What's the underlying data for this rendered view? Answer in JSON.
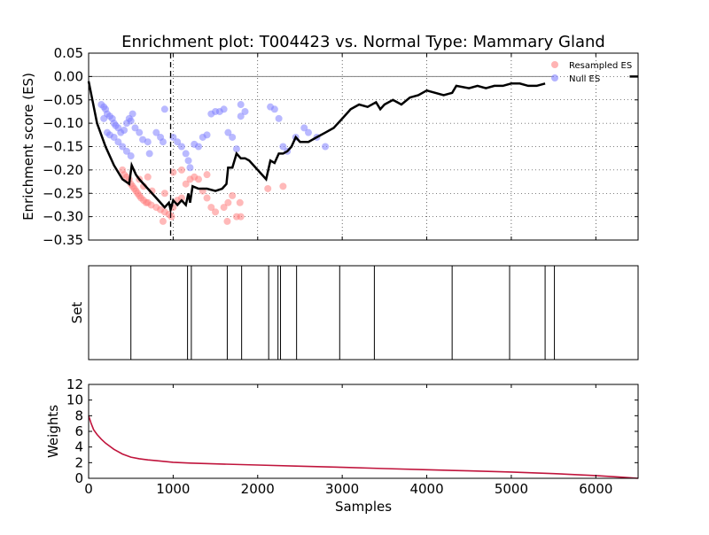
{
  "chart_data": [
    {
      "type": "line",
      "title": "Enrichment plot: T004423 vs. Normal Type: Mammary Gland",
      "ylabel": "Enrichment score (ES)",
      "xlim": [
        0,
        6500
      ],
      "ylim": [
        -0.35,
        0.05
      ],
      "yticks": [
        "0.05",
        "0.00",
        "−0.05",
        "−0.10",
        "−0.15",
        "−0.20",
        "−0.25",
        "−0.30",
        "−0.35"
      ],
      "grid": true,
      "legend": {
        "placement": "top-right",
        "entries": [
          "Resampled ES",
          "Null ES"
        ]
      },
      "colors": {
        "es_line": "#000000",
        "resampled": "#ff8080",
        "null": "#8080ff",
        "zero_line": "#808080"
      },
      "peak_marker_x": 970,
      "series": [
        {
          "name": "ES",
          "x": [
            0,
            100,
            200,
            300,
            400,
            480,
            510,
            560,
            600,
            700,
            800,
            900,
            950,
            970,
            1000,
            1050,
            1100,
            1150,
            1180,
            1200,
            1230,
            1300,
            1400,
            1500,
            1580,
            1630,
            1650,
            1700,
            1750,
            1800,
            1850,
            1900,
            2000,
            2100,
            2150,
            2200,
            2250,
            2300,
            2350,
            2400,
            2450,
            2500,
            2600,
            2700,
            2800,
            2900,
            2950,
            3000,
            3100,
            3200,
            3300,
            3400,
            3450,
            3500,
            3600,
            3700,
            3800,
            3900,
            4000,
            4100,
            4200,
            4300,
            4350,
            4500,
            4600,
            4700,
            4800,
            4900,
            5000,
            5100,
            5200,
            5300,
            5400
          ],
          "y": [
            -0.01,
            -0.1,
            -0.15,
            -0.19,
            -0.22,
            -0.23,
            -0.19,
            -0.21,
            -0.22,
            -0.24,
            -0.26,
            -0.28,
            -0.27,
            -0.285,
            -0.265,
            -0.275,
            -0.265,
            -0.275,
            -0.25,
            -0.27,
            -0.235,
            -0.24,
            -0.24,
            -0.245,
            -0.24,
            -0.23,
            -0.195,
            -0.195,
            -0.165,
            -0.175,
            -0.175,
            -0.18,
            -0.2,
            -0.22,
            -0.18,
            -0.185,
            -0.165,
            -0.165,
            -0.16,
            -0.15,
            -0.13,
            -0.14,
            -0.14,
            -0.13,
            -0.12,
            -0.11,
            -0.1,
            -0.09,
            -0.07,
            -0.06,
            -0.065,
            -0.055,
            -0.07,
            -0.06,
            -0.05,
            -0.06,
            -0.045,
            -0.04,
            -0.03,
            -0.035,
            -0.04,
            -0.035,
            -0.02,
            -0.025,
            -0.02,
            -0.025,
            -0.02,
            -0.02,
            -0.015,
            -0.015,
            -0.02,
            -0.02,
            -0.015
          ]
        },
        {
          "name": "Resampled ES",
          "points": [
            [
              400,
              -0.2
            ],
            [
              420,
              -0.21
            ],
            [
              450,
              -0.215
            ],
            [
              480,
              -0.22
            ],
            [
              500,
              -0.23
            ],
            [
              520,
              -0.235
            ],
            [
              540,
              -0.24
            ],
            [
              560,
              -0.245
            ],
            [
              580,
              -0.25
            ],
            [
              600,
              -0.255
            ],
            [
              620,
              -0.26
            ],
            [
              650,
              -0.265
            ],
            [
              680,
              -0.27
            ],
            [
              700,
              -0.27
            ],
            [
              740,
              -0.275
            ],
            [
              800,
              -0.28
            ],
            [
              850,
              -0.285
            ],
            [
              900,
              -0.29
            ],
            [
              950,
              -0.295
            ],
            [
              980,
              -0.3
            ],
            [
              1000,
              -0.28
            ],
            [
              1050,
              -0.265
            ],
            [
              1100,
              -0.26
            ],
            [
              1150,
              -0.23
            ],
            [
              1200,
              -0.22
            ],
            [
              1250,
              -0.215
            ],
            [
              1300,
              -0.22
            ],
            [
              1350,
              -0.245
            ],
            [
              1400,
              -0.26
            ],
            [
              1450,
              -0.28
            ],
            [
              1500,
              -0.29
            ],
            [
              1600,
              -0.28
            ],
            [
              1650,
              -0.27
            ],
            [
              1700,
              -0.255
            ],
            [
              1750,
              -0.3
            ],
            [
              1800,
              -0.3
            ],
            [
              880,
              -0.31
            ],
            [
              1640,
              -0.31
            ],
            [
              1790,
              -0.27
            ],
            [
              2120,
              -0.24
            ],
            [
              2300,
              -0.235
            ],
            [
              600,
              -0.22
            ],
            [
              700,
              -0.215
            ],
            [
              1000,
              -0.205
            ],
            [
              1100,
              -0.2
            ],
            [
              1400,
              -0.21
            ],
            [
              650,
              -0.235
            ],
            [
              750,
              -0.245
            ],
            [
              900,
              -0.25
            ]
          ],
          "color": "#ff8080"
        },
        {
          "name": "Null ES",
          "points": [
            [
              150,
              -0.06
            ],
            [
              180,
              -0.065
            ],
            [
              200,
              -0.07
            ],
            [
              220,
              -0.08
            ],
            [
              250,
              -0.085
            ],
            [
              280,
              -0.09
            ],
            [
              300,
              -0.1
            ],
            [
              320,
              -0.105
            ],
            [
              350,
              -0.11
            ],
            [
              380,
              -0.12
            ],
            [
              420,
              -0.115
            ],
            [
              450,
              -0.1
            ],
            [
              480,
              -0.09
            ],
            [
              500,
              -0.095
            ],
            [
              520,
              -0.08
            ],
            [
              550,
              -0.11
            ],
            [
              600,
              -0.12
            ],
            [
              640,
              -0.135
            ],
            [
              700,
              -0.14
            ],
            [
              720,
              -0.165
            ],
            [
              800,
              -0.12
            ],
            [
              850,
              -0.13
            ],
            [
              880,
              -0.14
            ],
            [
              900,
              -0.07
            ],
            [
              1000,
              -0.13
            ],
            [
              1050,
              -0.14
            ],
            [
              1100,
              -0.15
            ],
            [
              1150,
              -0.165
            ],
            [
              1180,
              -0.18
            ],
            [
              1200,
              -0.195
            ],
            [
              1250,
              -0.145
            ],
            [
              1300,
              -0.15
            ],
            [
              1350,
              -0.13
            ],
            [
              1400,
              -0.125
            ],
            [
              1450,
              -0.08
            ],
            [
              1500,
              -0.075
            ],
            [
              1550,
              -0.075
            ],
            [
              1600,
              -0.07
            ],
            [
              1650,
              -0.12
            ],
            [
              1700,
              -0.13
            ],
            [
              1750,
              -0.155
            ],
            [
              1800,
              -0.085
            ],
            [
              1850,
              -0.075
            ],
            [
              1800,
              -0.06
            ],
            [
              2150,
              -0.065
            ],
            [
              2200,
              -0.07
            ],
            [
              2250,
              -0.09
            ],
            [
              2300,
              -0.15
            ],
            [
              2350,
              -0.16
            ],
            [
              2450,
              -0.13
            ],
            [
              2550,
              -0.11
            ],
            [
              2600,
              -0.12
            ],
            [
              2700,
              -0.13
            ],
            [
              2800,
              -0.15
            ],
            [
              300,
              -0.13
            ],
            [
              250,
              -0.125
            ],
            [
              180,
              -0.09
            ],
            [
              220,
              -0.12
            ],
            [
              350,
              -0.14
            ],
            [
              400,
              -0.15
            ],
            [
              450,
              -0.16
            ],
            [
              500,
              -0.17
            ]
          ],
          "color": "#8080ff"
        }
      ]
    },
    {
      "type": "barcode",
      "ylabel": "Set",
      "xlim": [
        0,
        6500
      ],
      "hits": [
        500,
        1170,
        1215,
        1640,
        1810,
        2130,
        2240,
        2270,
        2460,
        2970,
        3380,
        4300,
        4980,
        5400,
        5510
      ]
    },
    {
      "type": "line",
      "xlabel": "Samples",
      "ylabel": "Weights",
      "xlim": [
        0,
        6500
      ],
      "ylim": [
        0,
        12
      ],
      "xticks": [
        "0",
        "1000",
        "2000",
        "3000",
        "4000",
        "5000",
        "6000"
      ],
      "yticks": [
        "0",
        "2",
        "4",
        "6",
        "8",
        "10",
        "12"
      ],
      "colors": {
        "weights_line": "#c0143c"
      },
      "series": [
        {
          "name": "Weights",
          "x": [
            0,
            30,
            60,
            100,
            150,
            200,
            300,
            400,
            500,
            600,
            700,
            800,
            1000,
            1200,
            1500,
            2000,
            2500,
            3000,
            3500,
            4000,
            4500,
            5000,
            5500,
            6000,
            6300,
            6500
          ],
          "y": [
            8.0,
            7.0,
            6.2,
            5.6,
            5.0,
            4.5,
            3.7,
            3.1,
            2.7,
            2.5,
            2.35,
            2.25,
            2.05,
            1.95,
            1.85,
            1.7,
            1.55,
            1.4,
            1.25,
            1.1,
            0.95,
            0.8,
            0.6,
            0.35,
            0.15,
            0.0
          ]
        }
      ]
    }
  ]
}
